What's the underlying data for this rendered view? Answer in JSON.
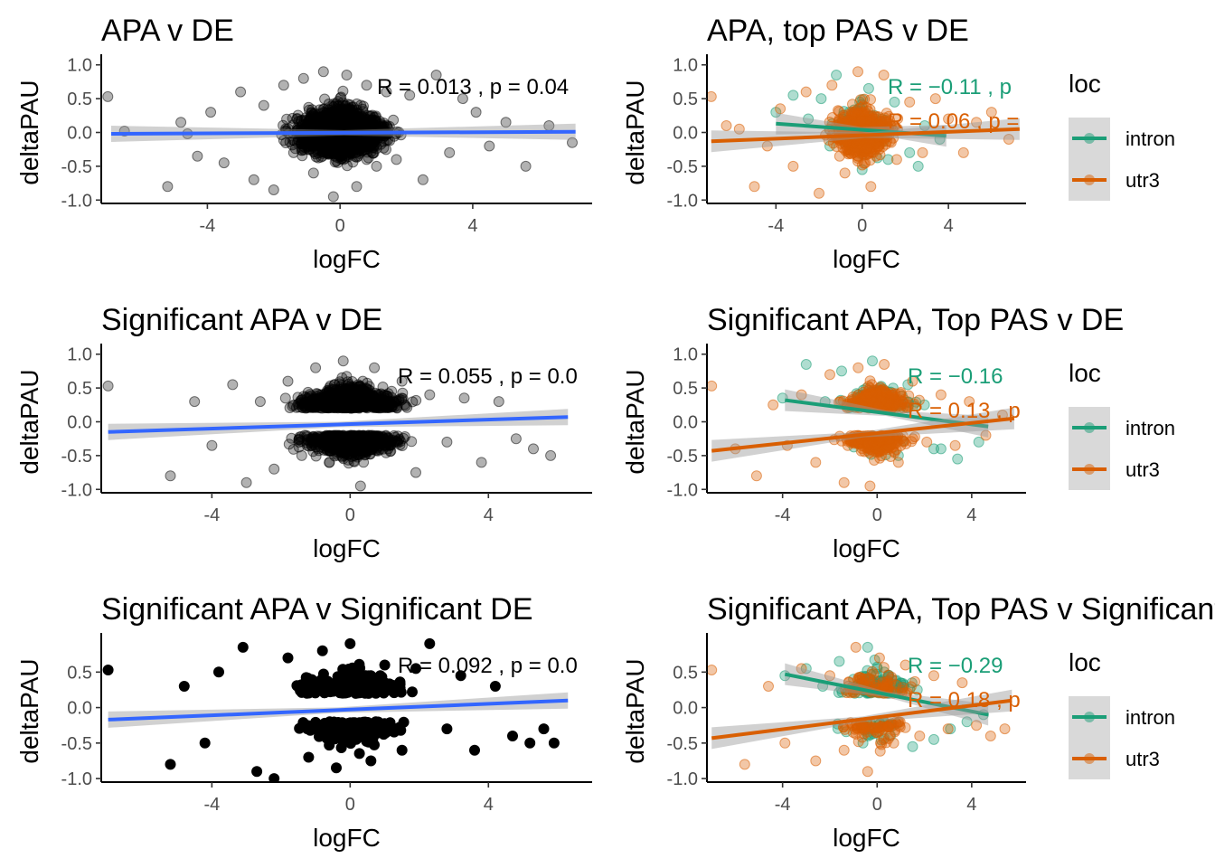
{
  "chart_data": [
    {
      "type": "scatter",
      "title": "APA v DE",
      "xlabel": "logFC",
      "ylabel": "deltaPAU",
      "xlim": [
        -7.2,
        7.6
      ],
      "ylim": [
        -1.05,
        1.05
      ],
      "xticks": [
        -4,
        0,
        4
      ],
      "yticks": [
        -1.0,
        -0.5,
        0.0,
        0.5,
        1.0
      ],
      "xtick_labels": [
        "-4",
        "0",
        "4"
      ],
      "ytick_labels": [
        "-1.0",
        "-0.5",
        "0.0",
        "0.5",
        "1.0"
      ],
      "point_color": "#000000",
      "point_alpha": 0.3,
      "point_style": "dense",
      "series": [
        {
          "fit_color": "#3366ff",
          "fit": {
            "x": [
              -6.9,
              7.1
            ],
            "y": [
              -0.02,
              0.01
            ]
          },
          "stat": "R = 0.013 , p = 0.04",
          "stat_color": "#000000",
          "points": {
            "x": [
              -7.0,
              -6.5,
              -5.2,
              -4.8,
              -4.6,
              -4.3,
              -3.9,
              -3.5,
              -3.0,
              -2.6,
              -2.3,
              -2.0,
              -1.7,
              -1.4,
              -1.1,
              -0.8,
              -0.5,
              -0.2,
              0.2,
              0.5,
              0.8,
              1.1,
              1.4,
              1.7,
              2.1,
              2.5,
              2.9,
              3.3,
              3.7,
              4.1,
              4.5,
              5.0,
              5.6,
              6.3,
              7.0
            ],
            "y": [
              0.53,
              0.02,
              -0.8,
              0.15,
              -0.02,
              -0.35,
              0.3,
              -0.45,
              0.6,
              -0.7,
              0.4,
              -0.85,
              0.7,
              -0.3,
              0.8,
              -0.6,
              0.9,
              -0.95,
              0.85,
              -0.8,
              0.7,
              -0.5,
              0.6,
              -0.4,
              0.55,
              -0.7,
              0.85,
              -0.3,
              0.5,
              0.3,
              -0.2,
              0.15,
              -0.5,
              0.1,
              -0.15
            ]
          }
        }
      ]
    },
    {
      "type": "scatter",
      "title": "APA, top PAS v DE",
      "xlabel": "logFC",
      "ylabel": "deltaPAU",
      "xlim": [
        -7.2,
        7.6
      ],
      "ylim": [
        -1.05,
        1.05
      ],
      "xticks": [
        -4,
        0,
        4
      ],
      "yticks": [
        -1.0,
        -0.5,
        0.0,
        0.5,
        1.0
      ],
      "xtick_labels": [
        "-4",
        "0",
        "4"
      ],
      "ytick_labels": [
        "-1.0",
        "-0.5",
        "0.0",
        "0.5",
        "1.0"
      ],
      "point_alpha": 0.35,
      "point_style": "dense",
      "legend": {
        "title": "loc",
        "entries": [
          "intron",
          "utr3"
        ],
        "position": "right"
      },
      "series": [
        {
          "name": "intron",
          "color": "#1b9e77",
          "fit": {
            "x": [
              -4.0,
              3.9
            ],
            "y": [
              0.13,
              -0.05
            ]
          },
          "stat": "R = −0.11 , p",
          "points": {
            "x": [
              -4.0,
              -3.2,
              -2.5,
              -1.9,
              -1.2,
              -0.6,
              0.3,
              0.9,
              1.5,
              2.2,
              2.9,
              3.6,
              -1.5,
              0.0,
              1.2,
              2.6
            ],
            "y": [
              0.3,
              0.55,
              0.2,
              0.5,
              0.85,
              0.3,
              0.65,
              0.2,
              0.45,
              -0.3,
              0.1,
              -0.1,
              -0.2,
              -0.55,
              -0.4,
              -0.5
            ]
          }
        },
        {
          "name": "utr3",
          "color": "#d95f02",
          "fit": {
            "x": [
              -7.0,
              7.3
            ],
            "y": [
              -0.13,
              0.05
            ]
          },
          "stat": "R = 0.06 , p =",
          "points": {
            "x": [
              -7.0,
              -6.3,
              -5.7,
              -5.0,
              -4.4,
              -3.8,
              -3.2,
              -2.6,
              -2.0,
              -1.4,
              -0.8,
              -0.2,
              0.4,
              1.0,
              1.6,
              2.2,
              2.8,
              3.4,
              4.0,
              4.7,
              5.3,
              6.0,
              6.8
            ],
            "y": [
              0.53,
              0.1,
              0.05,
              -0.8,
              -0.2,
              0.35,
              -0.5,
              0.6,
              -0.9,
              0.7,
              -0.6,
              0.9,
              -0.8,
              0.85,
              -0.4,
              0.45,
              -0.3,
              0.5,
              0.2,
              -0.3,
              0.15,
              0.3,
              -0.1
            ]
          }
        }
      ]
    },
    {
      "type": "scatter",
      "title": "Significant APA v DE",
      "xlabel": "logFC",
      "ylabel": "deltaPAU",
      "xlim": [
        -7.2,
        7.0
      ],
      "ylim": [
        -1.05,
        1.05
      ],
      "xticks": [
        -4,
        0,
        4
      ],
      "yticks": [
        -1.0,
        -0.5,
        0.0,
        0.5,
        1.0
      ],
      "xtick_labels": [
        "-4",
        "0",
        "4"
      ],
      "ytick_labels": [
        "-1.0",
        "-0.5",
        "0.0",
        "0.5",
        "1.0"
      ],
      "point_color": "#000000",
      "point_alpha": 0.3,
      "point_style": "bimodal",
      "series": [
        {
          "fit_color": "#3366ff",
          "fit": {
            "x": [
              -7.0,
              6.3
            ],
            "y": [
              -0.15,
              0.07
            ]
          },
          "stat": "R = 0.055 , p = 0.0",
          "stat_color": "#000000",
          "points": {
            "x": [
              -7.0,
              -5.2,
              -4.5,
              -4.0,
              -3.4,
              -3.0,
              -2.6,
              -2.2,
              -1.8,
              -1.4,
              -1.0,
              -0.6,
              -0.2,
              0.3,
              0.7,
              1.1,
              1.5,
              1.9,
              2.3,
              2.8,
              3.3,
              3.8,
              4.3,
              4.8,
              5.3,
              5.8
            ],
            "y": [
              0.53,
              -0.8,
              0.3,
              -0.35,
              0.55,
              -0.9,
              0.3,
              -0.7,
              0.6,
              -0.5,
              0.8,
              -0.6,
              0.9,
              -0.95,
              0.8,
              -0.4,
              0.6,
              -0.75,
              0.4,
              -0.3,
              0.35,
              -0.6,
              0.3,
              -0.25,
              -0.4,
              -0.5
            ]
          }
        }
      ]
    },
    {
      "type": "scatter",
      "title": "Significant APA, Top PAS v DE",
      "xlabel": "logFC",
      "ylabel": "deltaPAU",
      "xlim": [
        -7.2,
        6.3
      ],
      "ylim": [
        -1.05,
        1.05
      ],
      "xticks": [
        -4,
        0,
        4
      ],
      "yticks": [
        -1.0,
        -0.5,
        0.0,
        0.5,
        1.0
      ],
      "xtick_labels": [
        "-4",
        "0",
        "4"
      ],
      "ytick_labels": [
        "-1.0",
        "-0.5",
        "0.0",
        "0.5",
        "1.0"
      ],
      "point_alpha": 0.35,
      "point_style": "bimodal",
      "legend": {
        "title": "loc",
        "entries": [
          "intron",
          "utr3"
        ],
        "position": "right"
      },
      "series": [
        {
          "name": "intron",
          "color": "#1b9e77",
          "fit": {
            "x": [
              -3.9,
              4.7
            ],
            "y": [
              0.32,
              -0.07
            ]
          },
          "stat": "R = −0.16",
          "points": {
            "x": [
              -4.0,
              -3.0,
              -2.2,
              -1.5,
              -0.8,
              -0.2,
              0.6,
              1.3,
              2.0,
              2.7,
              3.4,
              4.3,
              -1.0,
              0.9,
              2.4
            ],
            "y": [
              0.35,
              0.85,
              0.3,
              0.75,
              0.4,
              0.9,
              0.3,
              0.55,
              0.25,
              -0.4,
              -0.55,
              -0.3,
              -0.25,
              -0.5,
              -0.4
            ]
          }
        },
        {
          "name": "utr3",
          "color": "#d95f02",
          "fit": {
            "x": [
              -7.0,
              5.8
            ],
            "y": [
              -0.43,
              0.05
            ]
          },
          "stat": "R = 0.13 , p",
          "points": {
            "x": [
              -7.0,
              -6.0,
              -5.1,
              -4.4,
              -3.8,
              -3.2,
              -2.6,
              -2.0,
              -1.4,
              -0.8,
              -0.3,
              0.3,
              0.9,
              1.5,
              2.1,
              2.7,
              3.3,
              3.9,
              4.6,
              5.3
            ],
            "y": [
              0.53,
              -0.4,
              -0.8,
              0.25,
              -0.35,
              0.4,
              -0.6,
              0.7,
              -0.9,
              0.8,
              -0.95,
              0.85,
              -0.6,
              0.6,
              -0.3,
              0.4,
              -0.35,
              0.3,
              -0.2,
              0.1
            ]
          }
        }
      ]
    },
    {
      "type": "scatter",
      "title": "Significant APA v Significant DE",
      "xlabel": "logFC",
      "ylabel": "deltaPAU",
      "xlim": [
        -7.2,
        7.0
      ],
      "ylim": [
        -1.05,
        0.95
      ],
      "xticks": [
        -4,
        0,
        4
      ],
      "yticks": [
        -1.0,
        -0.5,
        0.0,
        0.5
      ],
      "xtick_labels": [
        "-4",
        "0",
        "4"
      ],
      "ytick_labels": [
        "-1.0",
        "-0.5",
        "0.0",
        "0.5"
      ],
      "point_color": "#000000",
      "point_alpha": 1.0,
      "point_style": "bimodal-sparse",
      "series": [
        {
          "fit_color": "#3366ff",
          "fit": {
            "x": [
              -7.0,
              6.3
            ],
            "y": [
              -0.17,
              0.1
            ]
          },
          "stat": "R = 0.092 , p = 0.0",
          "stat_color": "#000000",
          "points": {
            "x": [
              -7.0,
              -5.2,
              -4.8,
              -4.2,
              -3.8,
              -3.1,
              -2.7,
              -2.2,
              -1.8,
              -1.2,
              -0.8,
              -0.4,
              0.0,
              0.6,
              1.0,
              1.5,
              1.9,
              2.3,
              2.8,
              3.2,
              3.6,
              4.2,
              4.7,
              5.2,
              5.6,
              5.9
            ],
            "y": [
              0.53,
              -0.8,
              0.3,
              -0.5,
              0.5,
              0.85,
              -0.9,
              -1.0,
              0.7,
              -0.7,
              0.8,
              -0.85,
              0.9,
              -0.75,
              0.6,
              -0.6,
              0.55,
              0.9,
              -0.3,
              0.45,
              -0.6,
              0.3,
              -0.4,
              -0.5,
              -0.3,
              -0.5
            ]
          }
        }
      ]
    },
    {
      "type": "scatter",
      "title": "Significant APA, Top PAS  v Significant DE",
      "xlabel": "logFC",
      "ylabel": "deltaPAU",
      "xlim": [
        -7.2,
        6.3
      ],
      "ylim": [
        -1.05,
        0.95
      ],
      "xticks": [
        -4,
        0,
        4
      ],
      "yticks": [
        -1.0,
        -0.5,
        0.0,
        0.5
      ],
      "xtick_labels": [
        "-4",
        "0",
        "4"
      ],
      "ytick_labels": [
        "-1.0",
        "-0.5",
        "0.0",
        "0.5"
      ],
      "point_alpha": 0.35,
      "point_style": "bimodal-sparse",
      "legend": {
        "title": "loc",
        "entries": [
          "intron",
          "utr3"
        ],
        "position": "right"
      },
      "series": [
        {
          "name": "intron",
          "color": "#1b9e77",
          "fit": {
            "x": [
              -3.9,
              4.7
            ],
            "y": [
              0.47,
              -0.1
            ]
          },
          "stat": "R = −0.29",
          "points": {
            "x": [
              -3.9,
              -3.0,
              -2.3,
              -1.6,
              -1.0,
              -0.4,
              0.3,
              1.0,
              1.7,
              2.4,
              3.1,
              3.8,
              4.5,
              -0.6,
              1.5
            ],
            "y": [
              0.45,
              0.55,
              0.3,
              0.65,
              0.4,
              0.85,
              0.5,
              0.35,
              0.25,
              -0.45,
              -0.3,
              -0.2,
              -0.1,
              -0.5,
              -0.55
            ]
          }
        },
        {
          "name": "utr3",
          "color": "#d95f02",
          "fit": {
            "x": [
              -7.0,
              5.7
            ],
            "y": [
              -0.43,
              0.1
            ]
          },
          "stat": "R = 0.18 , p",
          "points": {
            "x": [
              -7.0,
              -5.6,
              -4.6,
              -3.9,
              -3.2,
              -2.6,
              -2.0,
              -1.4,
              -0.9,
              -0.4,
              0.1,
              0.7,
              1.2,
              1.8,
              2.4,
              3.0,
              3.6,
              4.2,
              4.8,
              5.4
            ],
            "y": [
              0.53,
              -0.8,
              0.3,
              -0.5,
              0.55,
              -0.75,
              0.45,
              -0.6,
              0.85,
              -0.9,
              0.7,
              -0.5,
              0.6,
              -0.4,
              0.45,
              -0.3,
              0.35,
              -0.25,
              -0.4,
              -0.3
            ]
          }
        }
      ]
    }
  ]
}
